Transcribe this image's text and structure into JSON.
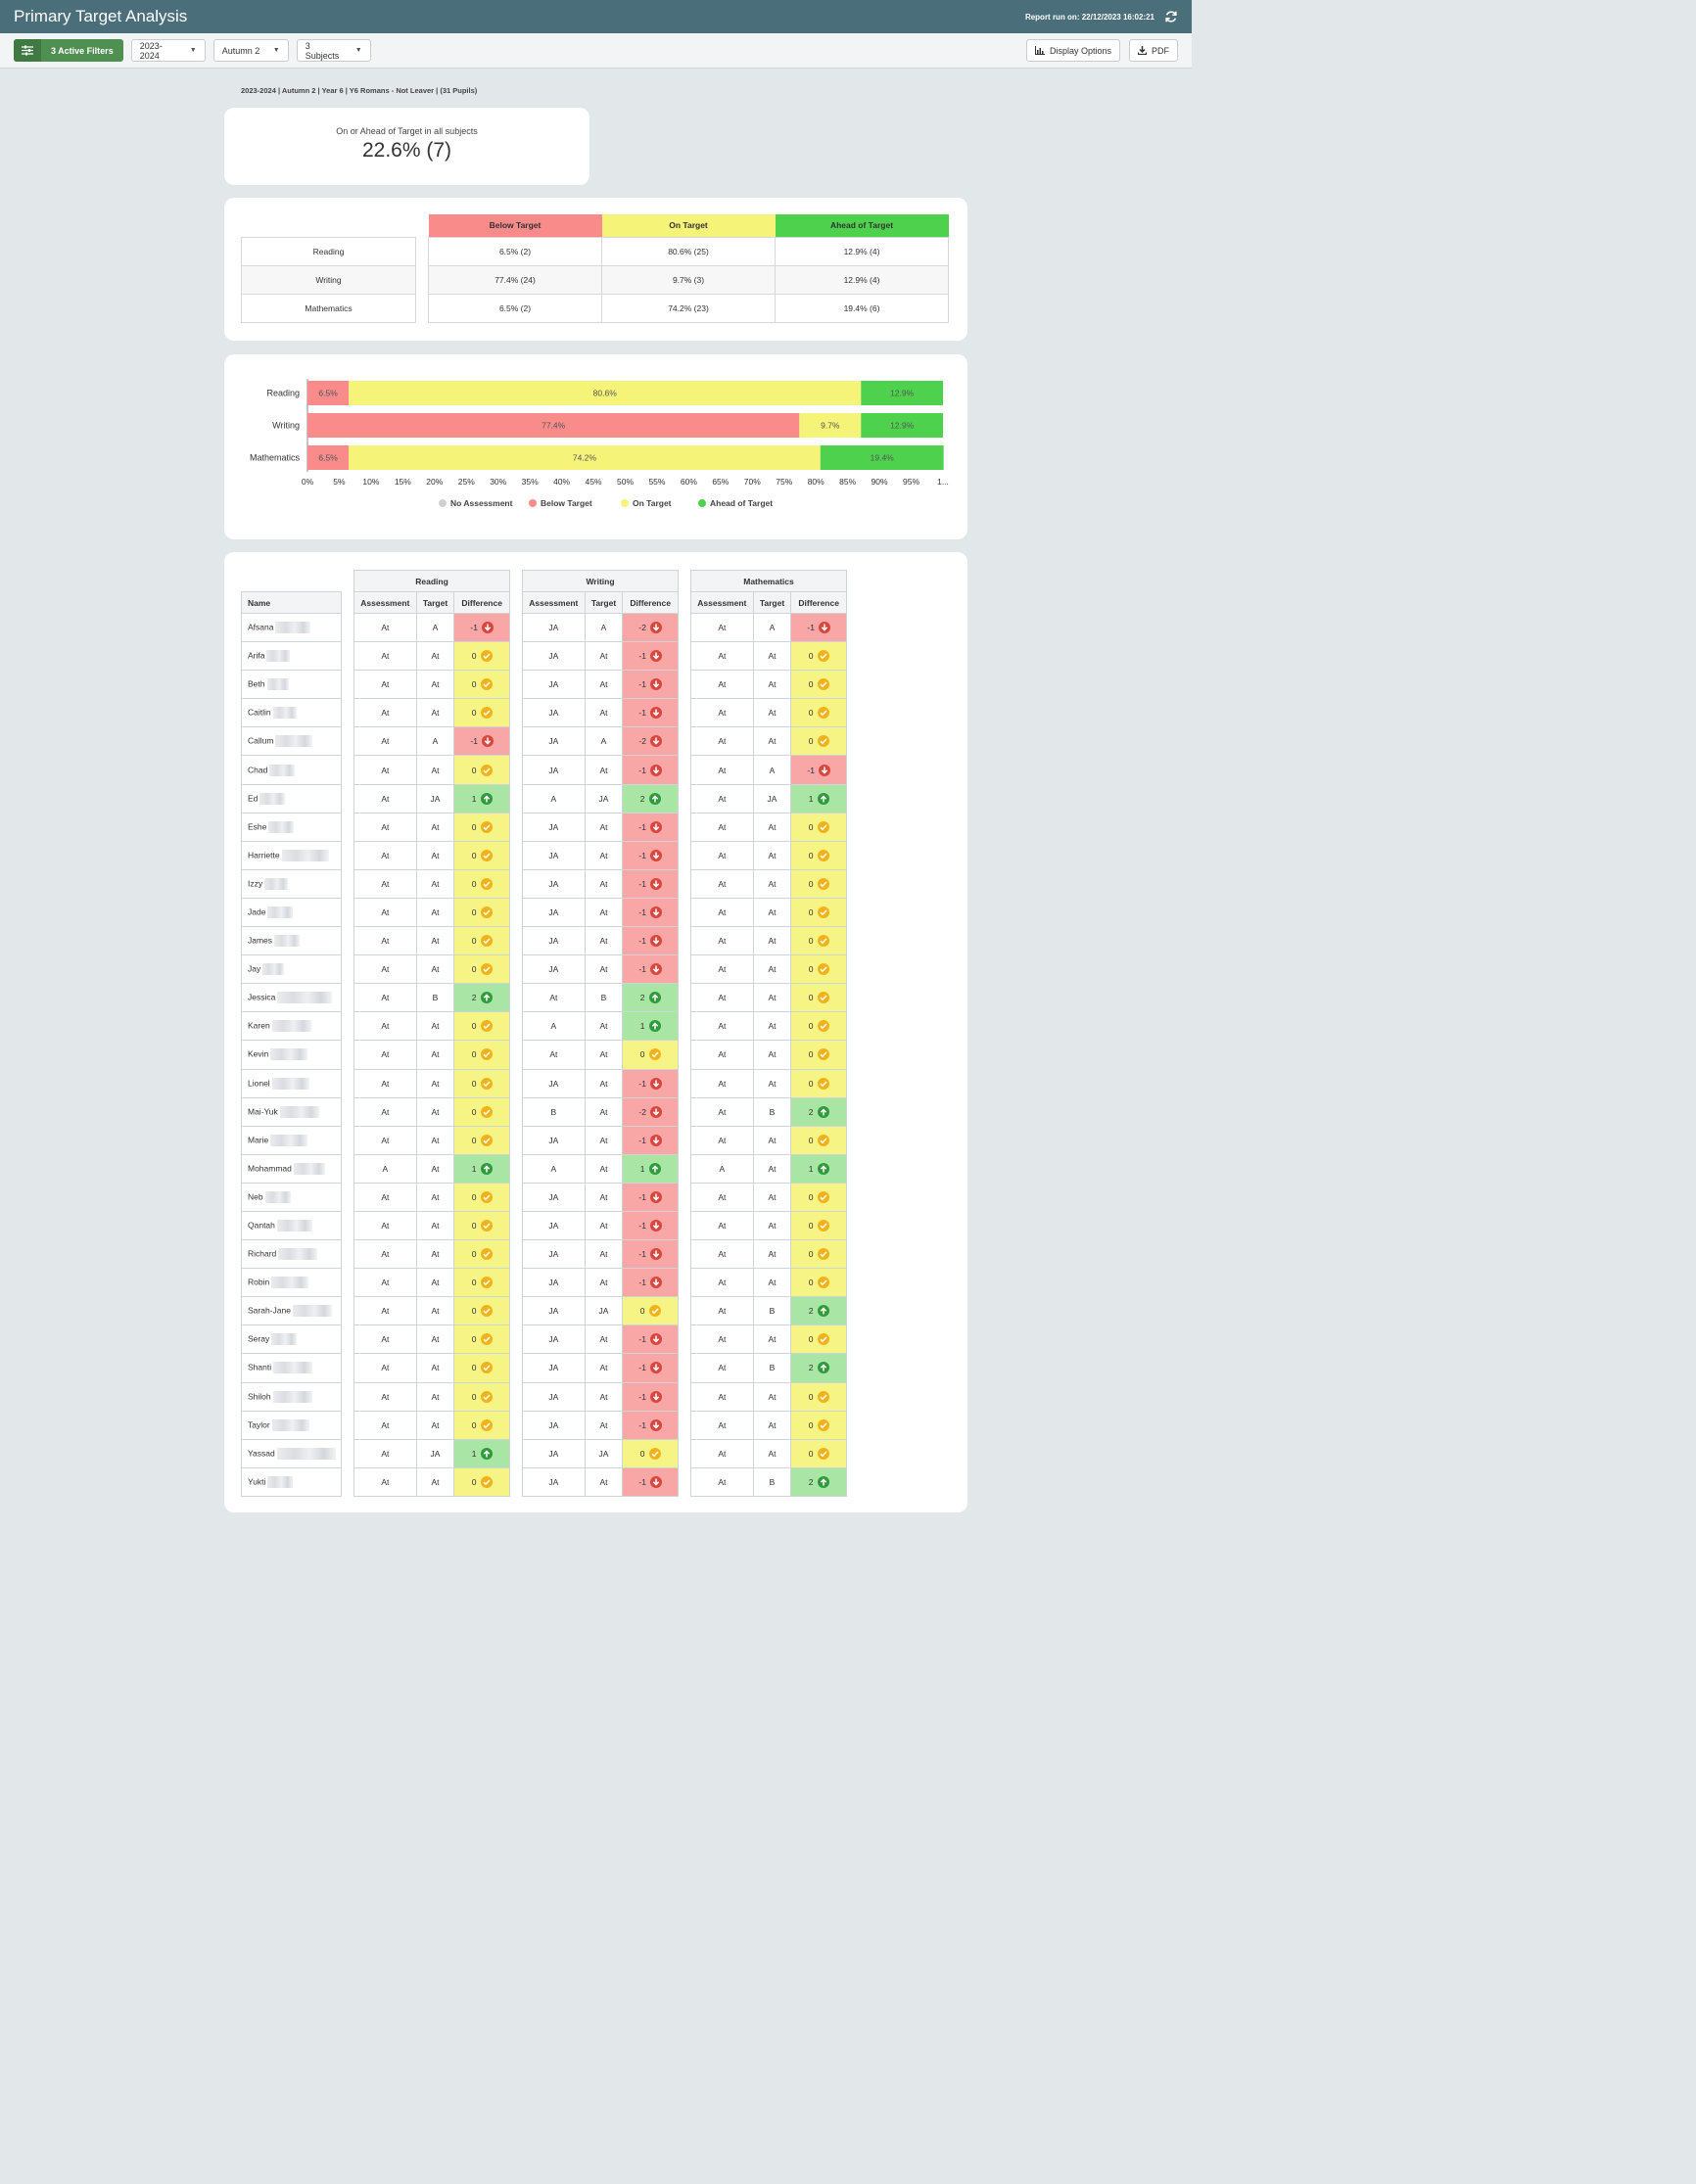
{
  "header": {
    "title": "Primary Target Analysis",
    "report_run": "Report run on: 22/12/2023 16:02:21"
  },
  "toolbar": {
    "filters_label": "3 Active Filters",
    "year": "2023-2024",
    "term": "Autumn 2",
    "subjects": "3 Subjects",
    "display_options": "Display Options",
    "pdf": "PDF"
  },
  "breadcrumb": "2023-2024 | Autumn 2 | Year 6 | Y6 Romans - Not Leaver | (31 Pupils)",
  "kpi": {
    "label": "On or Ahead of Target in all subjects",
    "value": "22.6% (7)"
  },
  "summary": {
    "headers": [
      "Below Target",
      "On Target",
      "Ahead of Target"
    ],
    "header_colors": [
      "#f98b8b",
      "#f5f378",
      "#4ed24e"
    ],
    "rows": [
      {
        "subject": "Reading",
        "below": "6.5% (2)",
        "on": "80.6% (25)",
        "ahead": "12.9% (4)"
      },
      {
        "subject": "Writing",
        "below": "77.4% (24)",
        "on": "9.7% (3)",
        "ahead": "12.9% (4)"
      },
      {
        "subject": "Mathematics",
        "below": "6.5% (2)",
        "on": "74.2% (23)",
        "ahead": "19.4% (6)"
      }
    ]
  },
  "chart_data": {
    "type": "bar",
    "orientation": "horizontal-stacked",
    "categories": [
      "Reading",
      "Writing",
      "Mathematics"
    ],
    "series": [
      {
        "name": "No Assessment",
        "color": "#d0d0d0",
        "values": [
          0,
          0,
          0
        ]
      },
      {
        "name": "Below Target",
        "color": "#f98b8b",
        "values": [
          6.5,
          77.4,
          6.5
        ]
      },
      {
        "name": "On Target",
        "color": "#f5f378",
        "values": [
          80.6,
          9.7,
          74.2
        ]
      },
      {
        "name": "Ahead of Target",
        "color": "#4ed24e",
        "values": [
          12.9,
          12.9,
          19.4
        ]
      }
    ],
    "data_labels": [
      [
        "6.5%",
        "80.6%",
        "12.9%"
      ],
      [
        "77.4%",
        "9.7%",
        "12.9%"
      ],
      [
        "6.5%",
        "74.2%",
        "19.4%"
      ]
    ],
    "xticks": [
      "0%",
      "5%",
      "10%",
      "15%",
      "20%",
      "25%",
      "30%",
      "35%",
      "40%",
      "45%",
      "50%",
      "55%",
      "60%",
      "65%",
      "70%",
      "75%",
      "80%",
      "85%",
      "90%",
      "95%",
      "1..."
    ],
    "xlim": [
      0,
      100
    ],
    "legend_position": "bottom"
  },
  "pupils_table": {
    "name_header": "Name",
    "subjects": [
      "Reading",
      "Writing",
      "Mathematics"
    ],
    "sub_headers": [
      "Assessment",
      "Target",
      "Difference"
    ],
    "rows": [
      {
        "name": "Afsana",
        "r": [
          "At",
          "A",
          "-1"
        ],
        "w": [
          "JA",
          "A",
          "-2"
        ],
        "m": [
          "At",
          "A",
          "-1"
        ]
      },
      {
        "name": "Arifa",
        "r": [
          "At",
          "At",
          "0"
        ],
        "w": [
          "JA",
          "At",
          "-1"
        ],
        "m": [
          "At",
          "At",
          "0"
        ]
      },
      {
        "name": "Beth",
        "r": [
          "At",
          "At",
          "0"
        ],
        "w": [
          "JA",
          "At",
          "-1"
        ],
        "m": [
          "At",
          "At",
          "0"
        ]
      },
      {
        "name": "Caitlin",
        "r": [
          "At",
          "At",
          "0"
        ],
        "w": [
          "JA",
          "At",
          "-1"
        ],
        "m": [
          "At",
          "At",
          "0"
        ]
      },
      {
        "name": "Callum",
        "r": [
          "At",
          "A",
          "-1"
        ],
        "w": [
          "JA",
          "A",
          "-2"
        ],
        "m": [
          "At",
          "At",
          "0"
        ]
      },
      {
        "name": "Chad",
        "r": [
          "At",
          "At",
          "0"
        ],
        "w": [
          "JA",
          "At",
          "-1"
        ],
        "m": [
          "At",
          "A",
          "-1"
        ]
      },
      {
        "name": "Ed",
        "r": [
          "At",
          "JA",
          "1"
        ],
        "w": [
          "A",
          "JA",
          "2"
        ],
        "m": [
          "At",
          "JA",
          "1"
        ]
      },
      {
        "name": "Eshe",
        "r": [
          "At",
          "At",
          "0"
        ],
        "w": [
          "JA",
          "At",
          "-1"
        ],
        "m": [
          "At",
          "At",
          "0"
        ]
      },
      {
        "name": "Harriette",
        "r": [
          "At",
          "At",
          "0"
        ],
        "w": [
          "JA",
          "At",
          "-1"
        ],
        "m": [
          "At",
          "At",
          "0"
        ]
      },
      {
        "name": "Izzy",
        "r": [
          "At",
          "At",
          "0"
        ],
        "w": [
          "JA",
          "At",
          "-1"
        ],
        "m": [
          "At",
          "At",
          "0"
        ]
      },
      {
        "name": "Jade",
        "r": [
          "At",
          "At",
          "0"
        ],
        "w": [
          "JA",
          "At",
          "-1"
        ],
        "m": [
          "At",
          "At",
          "0"
        ]
      },
      {
        "name": "James",
        "r": [
          "At",
          "At",
          "0"
        ],
        "w": [
          "JA",
          "At",
          "-1"
        ],
        "m": [
          "At",
          "At",
          "0"
        ]
      },
      {
        "name": "Jay",
        "r": [
          "At",
          "At",
          "0"
        ],
        "w": [
          "JA",
          "At",
          "-1"
        ],
        "m": [
          "At",
          "At",
          "0"
        ]
      },
      {
        "name": "Jessica",
        "r": [
          "At",
          "B",
          "2"
        ],
        "w": [
          "At",
          "B",
          "2"
        ],
        "m": [
          "At",
          "At",
          "0"
        ]
      },
      {
        "name": "Karen",
        "r": [
          "At",
          "At",
          "0"
        ],
        "w": [
          "A",
          "At",
          "1"
        ],
        "m": [
          "At",
          "At",
          "0"
        ]
      },
      {
        "name": "Kevin",
        "r": [
          "At",
          "At",
          "0"
        ],
        "w": [
          "At",
          "At",
          "0"
        ],
        "m": [
          "At",
          "At",
          "0"
        ]
      },
      {
        "name": "Lionel",
        "r": [
          "At",
          "At",
          "0"
        ],
        "w": [
          "JA",
          "At",
          "-1"
        ],
        "m": [
          "At",
          "At",
          "0"
        ]
      },
      {
        "name": "Mai-Yuk",
        "r": [
          "At",
          "At",
          "0"
        ],
        "w": [
          "B",
          "At",
          "-2"
        ],
        "m": [
          "At",
          "B",
          "2"
        ]
      },
      {
        "name": "Marie",
        "r": [
          "At",
          "At",
          "0"
        ],
        "w": [
          "JA",
          "At",
          "-1"
        ],
        "m": [
          "At",
          "At",
          "0"
        ]
      },
      {
        "name": "Mohammad",
        "r": [
          "A",
          "At",
          "1"
        ],
        "w": [
          "A",
          "At",
          "1"
        ],
        "m": [
          "A",
          "At",
          "1"
        ]
      },
      {
        "name": "Neb",
        "r": [
          "At",
          "At",
          "0"
        ],
        "w": [
          "JA",
          "At",
          "-1"
        ],
        "m": [
          "At",
          "At",
          "0"
        ]
      },
      {
        "name": "Qantah",
        "r": [
          "At",
          "At",
          "0"
        ],
        "w": [
          "JA",
          "At",
          "-1"
        ],
        "m": [
          "At",
          "At",
          "0"
        ]
      },
      {
        "name": "Richard",
        "r": [
          "At",
          "At",
          "0"
        ],
        "w": [
          "JA",
          "At",
          "-1"
        ],
        "m": [
          "At",
          "At",
          "0"
        ]
      },
      {
        "name": "Robin",
        "r": [
          "At",
          "At",
          "0"
        ],
        "w": [
          "JA",
          "At",
          "-1"
        ],
        "m": [
          "At",
          "At",
          "0"
        ]
      },
      {
        "name": "Sarah-Jane",
        "r": [
          "At",
          "At",
          "0"
        ],
        "w": [
          "JA",
          "JA",
          "0"
        ],
        "m": [
          "At",
          "B",
          "2"
        ]
      },
      {
        "name": "Seray",
        "r": [
          "At",
          "At",
          "0"
        ],
        "w": [
          "JA",
          "At",
          "-1"
        ],
        "m": [
          "At",
          "At",
          "0"
        ]
      },
      {
        "name": "Shanti",
        "r": [
          "At",
          "At",
          "0"
        ],
        "w": [
          "JA",
          "At",
          "-1"
        ],
        "m": [
          "At",
          "B",
          "2"
        ]
      },
      {
        "name": "Shiloh",
        "r": [
          "At",
          "At",
          "0"
        ],
        "w": [
          "JA",
          "At",
          "-1"
        ],
        "m": [
          "At",
          "At",
          "0"
        ]
      },
      {
        "name": "Taylor",
        "r": [
          "At",
          "At",
          "0"
        ],
        "w": [
          "JA",
          "At",
          "-1"
        ],
        "m": [
          "At",
          "At",
          "0"
        ]
      },
      {
        "name": "Yassad",
        "r": [
          "At",
          "JA",
          "1"
        ],
        "w": [
          "JA",
          "JA",
          "0"
        ],
        "m": [
          "At",
          "At",
          "0"
        ]
      },
      {
        "name": "Yukti",
        "r": [
          "At",
          "At",
          "0"
        ],
        "w": [
          "JA",
          "At",
          "-1"
        ],
        "m": [
          "At",
          "B",
          "2"
        ]
      }
    ]
  }
}
